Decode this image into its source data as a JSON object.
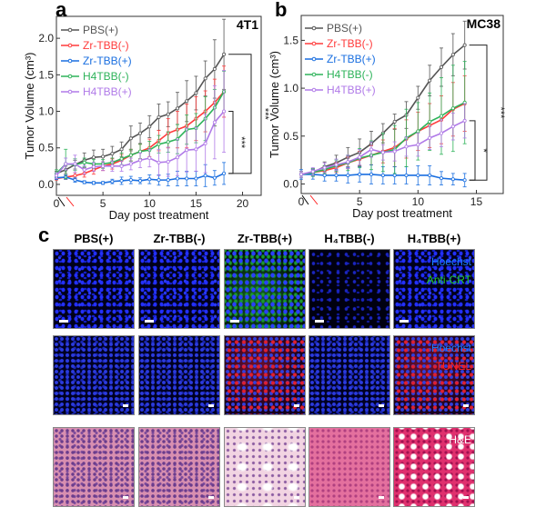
{
  "panels": {
    "a": "a",
    "b": "b",
    "c": "c"
  },
  "colors": {
    "PBS(+)": "#555555",
    "Zr-TBB(-)": "#ff3b3b",
    "Zr-TBB(+)": "#1a6fe0",
    "H4TBB(-)": "#2eb35a",
    "H4TBB(+)": "#b07ae8"
  },
  "chart_data": [
    {
      "type": "line",
      "panel": "a",
      "title": "4T1",
      "xlabel": "Day post treatment",
      "ylabel": "Tumor Volume (cm³)",
      "xlim": [
        0,
        22
      ],
      "ylim": [
        -0.15,
        2.3
      ],
      "xticks": [
        "0",
        "5",
        "10",
        "15",
        "20"
      ],
      "yticks": [
        "0.0",
        "0.5",
        "1.0",
        "1.5",
        "2.0"
      ],
      "legend": "top-left",
      "x": [
        0,
        1,
        2,
        3,
        4,
        5,
        6,
        7,
        8,
        9,
        10,
        11,
        12,
        13,
        14,
        15,
        16,
        17,
        18
      ],
      "series": [
        {
          "name": "PBS(+)",
          "values": [
            0.15,
            0.2,
            0.27,
            0.33,
            0.37,
            0.38,
            0.42,
            0.48,
            0.63,
            0.7,
            0.79,
            0.92,
            0.96,
            1.04,
            1.14,
            1.25,
            1.45,
            1.58,
            1.78
          ],
          "err": [
            0.03,
            0.05,
            0.06,
            0.1,
            0.1,
            0.1,
            0.1,
            0.1,
            0.17,
            0.14,
            0.15,
            0.18,
            0.17,
            0.22,
            0.28,
            0.23,
            0.24,
            0.4,
            0.48
          ]
        },
        {
          "name": "Zr-TBB(-)",
          "values": [
            0.08,
            0.1,
            0.12,
            0.15,
            0.2,
            0.25,
            0.28,
            0.33,
            0.4,
            0.45,
            0.5,
            0.6,
            0.7,
            0.75,
            0.8,
            0.9,
            1.0,
            1.12,
            1.27
          ],
          "err": [
            0.02,
            0.03,
            0.04,
            0.05,
            0.06,
            0.06,
            0.07,
            0.08,
            0.08,
            0.1,
            0.12,
            0.14,
            0.2,
            0.25,
            0.3,
            0.3,
            0.28,
            0.32,
            0.35
          ]
        },
        {
          "name": "Zr-TBB(+)",
          "values": [
            0.09,
            0.1,
            0.06,
            0.03,
            0.02,
            0.02,
            0.04,
            0.05,
            0.06,
            0.05,
            0.07,
            0.06,
            0.06,
            0.08,
            0.08,
            0.08,
            0.12,
            0.09,
            0.15
          ],
          "err": [
            0.02,
            0.03,
            0.03,
            0.02,
            0.02,
            0.02,
            0.03,
            0.05,
            0.05,
            0.04,
            0.06,
            0.07,
            0.08,
            0.1,
            0.1,
            0.1,
            0.15,
            0.1,
            0.15
          ]
        },
        {
          "name": "H4TBB(-)",
          "values": [
            0.15,
            0.28,
            0.27,
            0.3,
            0.28,
            0.28,
            0.3,
            0.35,
            0.4,
            0.45,
            0.47,
            0.55,
            0.58,
            0.62,
            0.75,
            0.77,
            0.9,
            1.05,
            1.27
          ],
          "err": [
            0.05,
            0.2,
            0.08,
            0.06,
            0.06,
            0.06,
            0.06,
            0.08,
            0.08,
            0.1,
            0.12,
            0.12,
            0.14,
            0.2,
            0.2,
            0.2,
            0.3,
            0.25,
            0.28
          ]
        },
        {
          "name": "H4TBB(+)",
          "values": [
            0.12,
            0.28,
            0.28,
            0.2,
            0.24,
            0.25,
            0.25,
            0.25,
            0.28,
            0.33,
            0.36,
            0.3,
            0.31,
            0.37,
            0.47,
            0.48,
            0.56,
            0.85,
            1.0
          ],
          "err": [
            0.04,
            0.08,
            0.12,
            0.06,
            0.06,
            0.06,
            0.07,
            0.07,
            0.08,
            0.1,
            0.12,
            0.18,
            0.2,
            0.25,
            0.3,
            0.3,
            0.4,
            0.5,
            0.56
          ]
        }
      ],
      "significance": [
        {
          "from": "PBS(+)",
          "to": "Zr-TBB(+)",
          "label": "***"
        },
        {
          "from": "H4TBB(+)",
          "to": "Zr-TBB(+)",
          "label": "***"
        }
      ]
    },
    {
      "type": "line",
      "panel": "b",
      "title": "MC38",
      "xlabel": "Day post treatment",
      "ylabel": "Tumor Volume (cm³)",
      "xlim": [
        0,
        17.3
      ],
      "ylim": [
        -0.1,
        1.76
      ],
      "xticks": [
        "0",
        "5",
        "10",
        "15"
      ],
      "yticks": [
        "0.0",
        "0.5",
        "1.0",
        "1.5"
      ],
      "legend": "top-left",
      "x": [
        0,
        1,
        2,
        3,
        4,
        5,
        6,
        7,
        8,
        9,
        10,
        11,
        12,
        13,
        14
      ],
      "series": [
        {
          "name": "PBS(+)",
          "values": [
            0.1,
            0.12,
            0.18,
            0.22,
            0.28,
            0.33,
            0.42,
            0.53,
            0.65,
            0.72,
            0.9,
            1.08,
            1.22,
            1.35,
            1.45
          ],
          "err": [
            0.03,
            0.04,
            0.05,
            0.08,
            0.1,
            0.14,
            0.13,
            0.1,
            0.08,
            0.14,
            0.12,
            0.16,
            0.2,
            0.22,
            0.25
          ]
        },
        {
          "name": "Zr-TBB(-)",
          "values": [
            0.1,
            0.12,
            0.14,
            0.17,
            0.22,
            0.26,
            0.3,
            0.34,
            0.38,
            0.47,
            0.55,
            0.61,
            0.67,
            0.78,
            0.84
          ],
          "err": [
            0.03,
            0.03,
            0.04,
            0.05,
            0.06,
            0.08,
            0.1,
            0.12,
            0.2,
            0.2,
            0.2,
            0.23,
            0.25,
            0.28,
            0.29
          ]
        },
        {
          "name": "Zr-TBB(+)",
          "values": [
            0.1,
            0.1,
            0.09,
            0.09,
            0.09,
            0.1,
            0.1,
            0.09,
            0.09,
            0.09,
            0.09,
            0.09,
            0.06,
            0.05,
            0.04
          ],
          "err": [
            0.05,
            0.05,
            0.06,
            0.06,
            0.08,
            0.08,
            0.1,
            0.09,
            0.09,
            0.09,
            0.1,
            0.1,
            0.07,
            0.06,
            0.07
          ]
        },
        {
          "name": "H4TBB(-)",
          "values": [
            0.1,
            0.12,
            0.15,
            0.19,
            0.22,
            0.27,
            0.3,
            0.33,
            0.36,
            0.48,
            0.55,
            0.65,
            0.71,
            0.79,
            0.85
          ],
          "err": [
            0.03,
            0.04,
            0.04,
            0.06,
            0.08,
            0.1,
            0.15,
            0.2,
            0.25,
            0.3,
            0.3,
            0.3,
            0.4,
            0.45,
            0.43
          ]
        },
        {
          "name": "H4TBB(+)",
          "values": [
            0.1,
            0.13,
            0.17,
            0.2,
            0.23,
            0.28,
            0.36,
            0.33,
            0.34,
            0.39,
            0.41,
            0.48,
            0.53,
            0.6,
            0.66
          ],
          "err": [
            0.03,
            0.04,
            0.05,
            0.06,
            0.07,
            0.08,
            0.08,
            0.08,
            0.1,
            0.1,
            0.12,
            0.12,
            0.14,
            0.14,
            0.18
          ]
        }
      ],
      "significance": [
        {
          "from": "PBS(+)",
          "to": "Zr-TBB(+)",
          "label": "***"
        },
        {
          "from": "H4TBB(+)",
          "to": "Zr-TBB(+)",
          "label": "*"
        }
      ]
    }
  ],
  "panel_c": {
    "columns": [
      "PBS(+)",
      "Zr-TBB(-)",
      "Zr-TBB(+)",
      "H₄TBB(-)",
      "H₄TBB(+)"
    ],
    "rows": [
      {
        "stains": [
          {
            "text": "Hoechst",
            "color": "#1a7fff"
          },
          {
            "text": "Anti-CRT",
            "color": "#22cc22"
          }
        ]
      },
      {
        "stains": [
          {
            "text": "Hoechst",
            "color": "#1a7fff"
          },
          {
            "text": "TUNEL",
            "color": "#ff2020"
          }
        ]
      },
      {
        "stains": [
          {
            "text": "H&E",
            "color": "#ffffff"
          }
        ]
      }
    ]
  }
}
